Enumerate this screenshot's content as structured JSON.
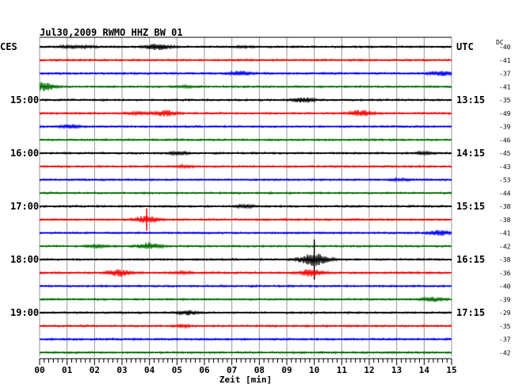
{
  "chart_data": {
    "type": "line",
    "title": "Jul30,2009   RWMO HHZ BW 01",
    "left_zone": "CES",
    "right_zone": "UTC",
    "dc_label": "DC",
    "xlabel": "Zeit [min]",
    "xlim": [
      0,
      15
    ],
    "x_ticks": [
      "00",
      "01",
      "02",
      "03",
      "04",
      "05",
      "06",
      "07",
      "08",
      "09",
      "10",
      "11",
      "12",
      "13",
      "14",
      "15"
    ],
    "trace_colors": [
      "#000000",
      "#ff0000",
      "#0000ff",
      "#007000"
    ],
    "hour_labels": [
      {
        "trace": 0,
        "left": "CES",
        "right": "UTC"
      },
      {
        "trace": 4,
        "left": "15:00",
        "right": "13:15"
      },
      {
        "trace": 8,
        "left": "16:00",
        "right": "14:15"
      },
      {
        "trace": 12,
        "left": "17:00",
        "right": "15:15"
      },
      {
        "trace": 16,
        "left": "18:00",
        "right": "16:15"
      },
      {
        "trace": 20,
        "left": "19:00",
        "right": "17:15"
      }
    ],
    "dc_offsets": [
      "-40",
      "-41",
      "-37",
      "-41",
      "-35",
      "-49",
      "-39",
      "-46",
      "-45",
      "-43",
      "-53",
      "-44",
      "-38",
      "-38",
      "-41",
      "-42",
      "-38",
      "-36",
      "-40",
      "-39",
      "-29",
      "-35",
      "-37",
      "-42"
    ],
    "events": [
      {
        "trace": 0,
        "minute": 1.1,
        "amp": 0.35
      },
      {
        "trace": 0,
        "minute": 1.7,
        "amp": 0.25
      },
      {
        "trace": 0,
        "minute": 4.3,
        "amp": 0.9
      },
      {
        "trace": 0,
        "minute": 7.5,
        "amp": 0.25
      },
      {
        "trace": 2,
        "minute": 7.3,
        "amp": 0.7
      },
      {
        "trace": 2,
        "minute": 14.6,
        "amp": 0.7
      },
      {
        "trace": 3,
        "minute": 0.1,
        "amp": 1.2
      },
      {
        "trace": 3,
        "minute": 5.3,
        "amp": 0.3
      },
      {
        "trace": 4,
        "minute": 9.6,
        "amp": 0.7
      },
      {
        "trace": 5,
        "minute": 3.6,
        "amp": 0.4
      },
      {
        "trace": 5,
        "minute": 4.6,
        "amp": 0.8
      },
      {
        "trace": 5,
        "minute": 11.7,
        "amp": 0.8
      },
      {
        "trace": 6,
        "minute": 1.1,
        "amp": 0.6
      },
      {
        "trace": 8,
        "minute": 5.0,
        "amp": 0.45
      },
      {
        "trace": 8,
        "minute": 14.0,
        "amp": 0.3
      },
      {
        "trace": 9,
        "minute": 5.3,
        "amp": 0.3
      },
      {
        "trace": 10,
        "minute": 13.1,
        "amp": 0.3
      },
      {
        "trace": 12,
        "minute": 7.5,
        "amp": 0.35
      },
      {
        "trace": 13,
        "minute": 3.9,
        "amp": 1.0,
        "spike": true
      },
      {
        "trace": 14,
        "minute": 14.6,
        "amp": 0.7
      },
      {
        "trace": 15,
        "minute": 2.1,
        "amp": 0.4
      },
      {
        "trace": 15,
        "minute": 4.0,
        "amp": 0.9
      },
      {
        "trace": 16,
        "minute": 10.0,
        "amp": 1.8,
        "spike": true
      },
      {
        "trace": 17,
        "minute": 2.9,
        "amp": 1.0
      },
      {
        "trace": 17,
        "minute": 5.2,
        "amp": 0.3
      },
      {
        "trace": 17,
        "minute": 9.9,
        "amp": 1.0
      },
      {
        "trace": 19,
        "minute": 14.3,
        "amp": 0.6
      },
      {
        "trace": 20,
        "minute": 5.4,
        "amp": 0.6
      },
      {
        "trace": 21,
        "minute": 5.2,
        "amp": 0.3
      }
    ]
  }
}
